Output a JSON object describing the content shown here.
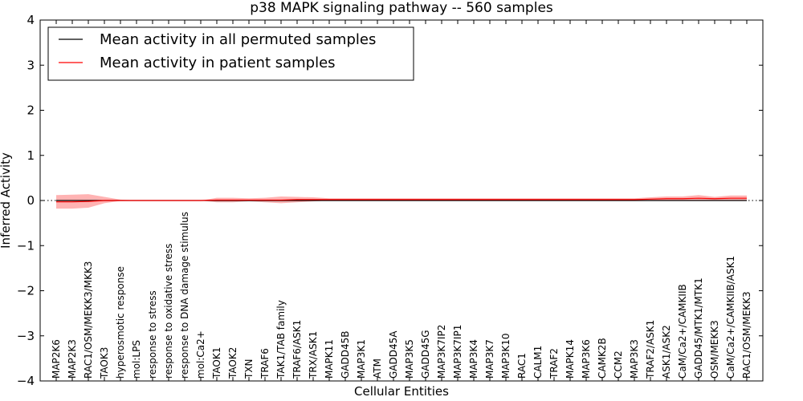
{
  "chart_data": {
    "type": "line",
    "title": "p38 MAPK signaling pathway -- 560 samples",
    "xlabel": "Cellular Entities",
    "ylabel": "Inferred Activity",
    "ylim": [
      -4,
      4
    ],
    "yticks": [
      -4,
      -3,
      -2,
      -1,
      0,
      1,
      2,
      3,
      4
    ],
    "ytick_labels": [
      "−4",
      "−3",
      "−2",
      "−1",
      "0",
      "1",
      "2",
      "3",
      "4"
    ],
    "legend_position": "top-left",
    "categories": [
      "MAP2K6",
      "MAP2K3",
      "RAC1/OSM/MEKK3/MKK3",
      "TAOK3",
      "hyperosmotic response",
      "mol:LPS",
      "response to stress",
      "response to oxidative stress",
      "response to DNA damage stimulus",
      "mol:Ca2+",
      "TAOK1",
      "TAOK2",
      "TXN",
      "TRAF6",
      "TAK1/TAB family",
      "TRAF6/ASK1",
      "TRX/ASK1",
      "MAPK11",
      "GADD45B",
      "MAP3K1",
      "ATM",
      "GADD45A",
      "MAP3K5",
      "GADD45G",
      "MAP3K7IP2",
      "MAP3K7IP1",
      "MAP3K4",
      "MAP3K7",
      "MAP3K10",
      "RAC1",
      "CALM1",
      "TRAF2",
      "MAPK14",
      "MAP3K6",
      "CAMK2B",
      "CCM2",
      "MAP3K3",
      "TRAF2/ASK1",
      "ASK1/ASK2",
      "CaM/Ca2+/CAMKIIB",
      "GADD45/MTK1/MTK1",
      "OSM/MEKK3",
      "CaM/Ca2+/CAMKIIB/ASK1",
      "RAC1/OSM/MEKK3"
    ],
    "series": [
      {
        "name": "Mean activity in all permuted samples",
        "color": "#000000",
        "values": [
          0,
          0,
          0,
          0,
          0,
          0,
          0,
          0,
          0,
          0,
          0,
          0,
          0,
          0,
          0,
          0,
          0,
          0,
          0,
          0,
          0,
          0,
          0,
          0,
          0,
          0,
          0,
          0,
          0,
          0,
          0,
          0,
          0,
          0,
          0,
          0,
          0,
          0,
          0,
          0,
          0,
          0,
          0,
          0
        ]
      },
      {
        "name": "Mean activity in patient samples",
        "color": "#ff0000",
        "band_color": "#ff9999",
        "values": [
          -0.03,
          -0.03,
          -0.02,
          0.0,
          0.0,
          0.0,
          0.0,
          0.0,
          0.0,
          0.0,
          0.01,
          0.01,
          0.01,
          0.01,
          0.01,
          0.02,
          0.02,
          0.02,
          0.02,
          0.02,
          0.02,
          0.02,
          0.02,
          0.02,
          0.02,
          0.02,
          0.02,
          0.02,
          0.02,
          0.02,
          0.02,
          0.02,
          0.02,
          0.02,
          0.02,
          0.02,
          0.02,
          0.03,
          0.04,
          0.04,
          0.05,
          0.04,
          0.05,
          0.05
        ],
        "upper": [
          0.12,
          0.13,
          0.14,
          0.08,
          0.02,
          0.0,
          0.0,
          0.0,
          0.0,
          0.0,
          0.06,
          0.06,
          0.05,
          0.06,
          0.09,
          0.08,
          0.07,
          0.05,
          0.05,
          0.05,
          0.05,
          0.05,
          0.05,
          0.05,
          0.05,
          0.05,
          0.05,
          0.05,
          0.05,
          0.05,
          0.05,
          0.05,
          0.05,
          0.05,
          0.05,
          0.05,
          0.05,
          0.07,
          0.09,
          0.09,
          0.12,
          0.08,
          0.11,
          0.11
        ],
        "lower": [
          -0.18,
          -0.18,
          -0.16,
          -0.06,
          -0.01,
          0.0,
          0.0,
          0.0,
          0.0,
          0.0,
          -0.04,
          -0.04,
          -0.02,
          -0.04,
          -0.06,
          -0.04,
          -0.02,
          0.0,
          0.0,
          0.0,
          0.0,
          0.0,
          0.0,
          0.0,
          0.0,
          0.0,
          0.0,
          0.0,
          0.0,
          0.0,
          0.0,
          0.0,
          0.0,
          0.0,
          0.0,
          0.0,
          0.0,
          -0.01,
          0.0,
          0.0,
          -0.01,
          0.0,
          0.0,
          0.0
        ]
      }
    ]
  }
}
